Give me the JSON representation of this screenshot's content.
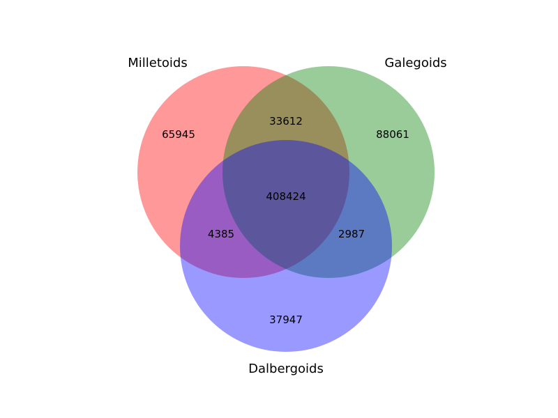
{
  "sets": {
    "a": {
      "name": "Milletoids",
      "color": "#ff0000"
    },
    "b": {
      "name": "Galegoids",
      "color": "#008000"
    },
    "c": {
      "name": "Dalbergoids",
      "color": "#0000ff"
    }
  },
  "regions": {
    "a_only": "65945",
    "b_only": "88061",
    "c_only": "37947",
    "ab_only": "33612",
    "ac_only": "4385",
    "bc_only": "2987",
    "abc": "408424"
  },
  "fill_opacity": 0.4
}
